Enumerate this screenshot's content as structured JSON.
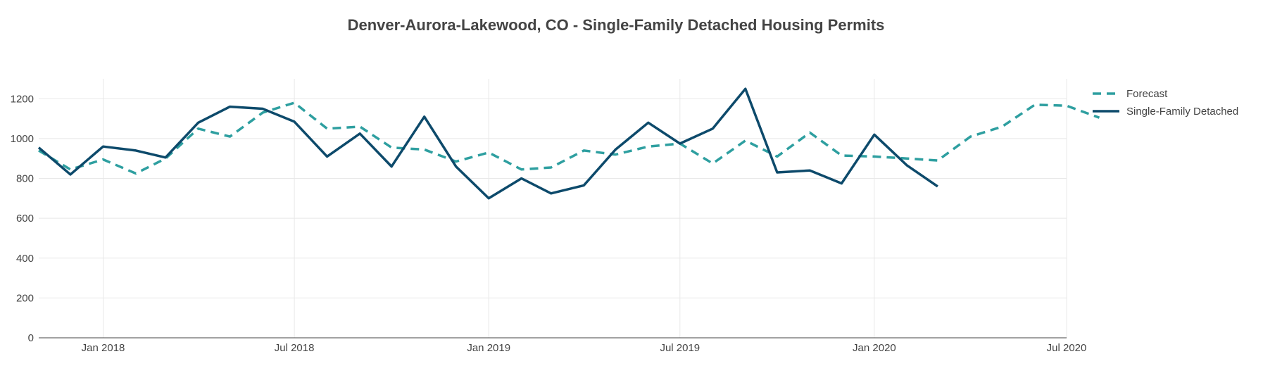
{
  "chart_data": {
    "type": "line",
    "title": "Denver-Aurora-Lakewood, CO - Single-Family Detached Housing Permits",
    "xlabel": "",
    "ylabel": "",
    "x_range": [
      "2017-11-01",
      "2020-07-01"
    ],
    "ylim": [
      0,
      1300
    ],
    "y_ticks": [
      0,
      200,
      400,
      600,
      800,
      1000,
      1200
    ],
    "x_ticks": [
      {
        "date": "2018-01-01",
        "label": "Jan 2018"
      },
      {
        "date": "2018-07-01",
        "label": "Jul 2018"
      },
      {
        "date": "2019-01-01",
        "label": "Jan 2019"
      },
      {
        "date": "2019-07-01",
        "label": "Jul 2019"
      },
      {
        "date": "2020-01-01",
        "label": "Jan 2020"
      },
      {
        "date": "2020-07-01",
        "label": "Jul 2020"
      }
    ],
    "grid": true,
    "legend_position": "top-right",
    "series": [
      {
        "name": "Forecast",
        "style": "dashed",
        "color": "#2e9fa0",
        "points": [
          {
            "x": "2017-11-01",
            "y": 940
          },
          {
            "x": "2017-12-01",
            "y": 845
          },
          {
            "x": "2018-01-01",
            "y": 895
          },
          {
            "x": "2018-02-01",
            "y": 825
          },
          {
            "x": "2018-03-01",
            "y": 900
          },
          {
            "x": "2018-04-01",
            "y": 1050
          },
          {
            "x": "2018-05-01",
            "y": 1010
          },
          {
            "x": "2018-06-01",
            "y": 1130
          },
          {
            "x": "2018-07-01",
            "y": 1180
          },
          {
            "x": "2018-08-01",
            "y": 1050
          },
          {
            "x": "2018-09-01",
            "y": 1060
          },
          {
            "x": "2018-10-01",
            "y": 955
          },
          {
            "x": "2018-11-01",
            "y": 945
          },
          {
            "x": "2018-12-01",
            "y": 885
          },
          {
            "x": "2019-01-01",
            "y": 930
          },
          {
            "x": "2019-02-01",
            "y": 845
          },
          {
            "x": "2019-03-01",
            "y": 855
          },
          {
            "x": "2019-04-01",
            "y": 940
          },
          {
            "x": "2019-05-01",
            "y": 920
          },
          {
            "x": "2019-06-01",
            "y": 960
          },
          {
            "x": "2019-07-01",
            "y": 975
          },
          {
            "x": "2019-08-01",
            "y": 875
          },
          {
            "x": "2019-09-01",
            "y": 990
          },
          {
            "x": "2019-10-01",
            "y": 910
          },
          {
            "x": "2019-11-01",
            "y": 1030
          },
          {
            "x": "2019-12-01",
            "y": 915
          },
          {
            "x": "2020-01-01",
            "y": 910
          },
          {
            "x": "2020-02-01",
            "y": 900
          },
          {
            "x": "2020-03-01",
            "y": 890
          },
          {
            "x": "2020-04-01",
            "y": 1010
          },
          {
            "x": "2020-05-01",
            "y": 1060
          },
          {
            "x": "2020-06-01",
            "y": 1170
          },
          {
            "x": "2020-07-01",
            "y": 1165
          },
          {
            "x": "2020-08-01",
            "y": 1105
          }
        ]
      },
      {
        "name": "Single-Family Detached",
        "style": "solid",
        "color": "#0d4a6b",
        "points": [
          {
            "x": "2017-11-01",
            "y": 955
          },
          {
            "x": "2017-12-01",
            "y": 820
          },
          {
            "x": "2018-01-01",
            "y": 960
          },
          {
            "x": "2018-02-01",
            "y": 940
          },
          {
            "x": "2018-03-01",
            "y": 905
          },
          {
            "x": "2018-04-01",
            "y": 1080
          },
          {
            "x": "2018-05-01",
            "y": 1160
          },
          {
            "x": "2018-06-01",
            "y": 1150
          },
          {
            "x": "2018-07-01",
            "y": 1085
          },
          {
            "x": "2018-08-01",
            "y": 910
          },
          {
            "x": "2018-09-01",
            "y": 1025
          },
          {
            "x": "2018-10-01",
            "y": 860
          },
          {
            "x": "2018-11-01",
            "y": 1110
          },
          {
            "x": "2018-12-01",
            "y": 860
          },
          {
            "x": "2019-01-01",
            "y": 700
          },
          {
            "x": "2019-02-01",
            "y": 800
          },
          {
            "x": "2019-03-01",
            "y": 725
          },
          {
            "x": "2019-04-01",
            "y": 765
          },
          {
            "x": "2019-05-01",
            "y": 945
          },
          {
            "x": "2019-06-01",
            "y": 1080
          },
          {
            "x": "2019-07-01",
            "y": 975
          },
          {
            "x": "2019-08-01",
            "y": 1050
          },
          {
            "x": "2019-09-01",
            "y": 1250
          },
          {
            "x": "2019-10-01",
            "y": 830
          },
          {
            "x": "2019-11-01",
            "y": 840
          },
          {
            "x": "2019-12-01",
            "y": 775
          },
          {
            "x": "2020-01-01",
            "y": 1020
          },
          {
            "x": "2020-02-01",
            "y": 865
          },
          {
            "x": "2020-03-01",
            "y": 760
          }
        ]
      }
    ]
  }
}
